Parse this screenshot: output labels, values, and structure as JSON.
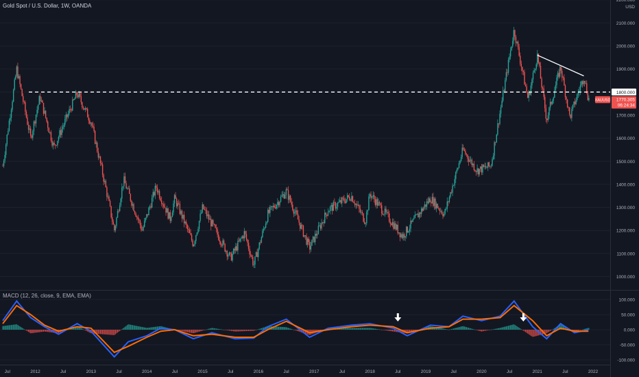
{
  "header": {
    "symbol": "Gold Spot / U.S. Dollar, 1W, OANDA"
  },
  "price_axis": {
    "unit": "USD",
    "ticks": [
      "2200.000",
      "2100.000",
      "2000.000",
      "1900.000",
      "1800.000",
      "1700.000",
      "1600.000",
      "1500.000",
      "1400.000",
      "1300.000",
      "1200.000",
      "1100.000",
      "1000.000"
    ],
    "level_label": "1800.000",
    "symbol_badge": "XAUUSD",
    "last_price": "1770.305",
    "countdown": "06:24:34"
  },
  "macd": {
    "label": "MACD (12, 26, close, 9, EMA, EMA)",
    "ticks": [
      "100.000",
      "50.000",
      "0.000",
      "-50.000",
      "-100.000"
    ]
  },
  "time_axis": {
    "labels": [
      "Jul",
      "2012",
      "Jul",
      "2013",
      "Jul",
      "2014",
      "Jul",
      "2015",
      "Jul",
      "2016",
      "Jul",
      "2017",
      "Jul",
      "2018",
      "Jul",
      "2019",
      "Jul",
      "2020",
      "Jul",
      "2021",
      "Jul",
      "2022"
    ]
  },
  "colors": {
    "up": "#26a69a",
    "down": "#ef5350",
    "macd_line": "#2962ff",
    "signal_line": "#ff6d00",
    "background": "#131722",
    "annotation": "#ffffff"
  },
  "icons": [
    "down-arrow-icon",
    "down-arrow-icon"
  ],
  "chart_data": [
    {
      "type": "candlestick",
      "title": "Gold Spot / U.S. Dollar, 1W, OANDA",
      "ylabel": "USD",
      "ylim": [
        1000,
        2200
      ],
      "x_range": [
        "2011-06",
        "2021-12"
      ],
      "key_points": [
        {
          "x": "2011-06",
          "y": 1480
        },
        {
          "x": "2011-09",
          "y": 1900
        },
        {
          "x": "2011-12",
          "y": 1600
        },
        {
          "x": "2012-02",
          "y": 1780
        },
        {
          "x": "2012-05",
          "y": 1560
        },
        {
          "x": "2012-10",
          "y": 1795
        },
        {
          "x": "2013-01",
          "y": 1670
        },
        {
          "x": "2013-04",
          "y": 1400
        },
        {
          "x": "2013-06",
          "y": 1200
        },
        {
          "x": "2013-08",
          "y": 1420
        },
        {
          "x": "2013-12",
          "y": 1200
        },
        {
          "x": "2014-03",
          "y": 1390
        },
        {
          "x": "2014-06",
          "y": 1250
        },
        {
          "x": "2014-07",
          "y": 1340
        },
        {
          "x": "2014-11",
          "y": 1140
        },
        {
          "x": "2015-01",
          "y": 1300
        },
        {
          "x": "2015-07",
          "y": 1080
        },
        {
          "x": "2015-10",
          "y": 1190
        },
        {
          "x": "2015-12",
          "y": 1050
        },
        {
          "x": "2016-03",
          "y": 1270
        },
        {
          "x": "2016-07",
          "y": 1370
        },
        {
          "x": "2016-12",
          "y": 1125
        },
        {
          "x": "2017-04",
          "y": 1290
        },
        {
          "x": "2017-09",
          "y": 1350
        },
        {
          "x": "2017-12",
          "y": 1240
        },
        {
          "x": "2018-01",
          "y": 1360
        },
        {
          "x": "2018-08",
          "y": 1175
        },
        {
          "x": "2019-02",
          "y": 1340
        },
        {
          "x": "2019-05",
          "y": 1270
        },
        {
          "x": "2019-09",
          "y": 1550
        },
        {
          "x": "2019-12",
          "y": 1460
        },
        {
          "x": "2020-03",
          "y": 1480
        },
        {
          "x": "2020-08",
          "y": 2070
        },
        {
          "x": "2020-11",
          "y": 1770
        },
        {
          "x": "2021-01",
          "y": 1960
        },
        {
          "x": "2021-03",
          "y": 1680
        },
        {
          "x": "2021-06",
          "y": 1910
        },
        {
          "x": "2021-08",
          "y": 1690
        },
        {
          "x": "2021-11",
          "y": 1870
        },
        {
          "x": "2021-12",
          "y": 1770
        }
      ],
      "horizontal_line": {
        "y": 1800,
        "style": "dashed"
      },
      "trendline": [
        {
          "x": "2021-01",
          "y": 1960
        },
        {
          "x": "2021-11",
          "y": 1870
        }
      ]
    },
    {
      "type": "line",
      "title": "MACD (12, 26, close, 9, EMA, EMA)",
      "ylim": [
        -110,
        115
      ],
      "series": [
        {
          "values": [
            {
              "x": "2011-06",
              "y": 30
            },
            {
              "x": "2011-09",
              "y": 95
            },
            {
              "x": "2011-12",
              "y": 40
            },
            {
              "x": "2012-03",
              "y": 10
            },
            {
              "x": "2012-06",
              "y": -15
            },
            {
              "x": "2012-10",
              "y": 20
            },
            {
              "x": "2013-01",
              "y": -5
            },
            {
              "x": "2013-06",
              "y": -90
            },
            {
              "x": "2013-09",
              "y": -40
            },
            {
              "x": "2014-01",
              "y": -20
            },
            {
              "x": "2014-04",
              "y": 5
            },
            {
              "x": "2014-07",
              "y": 0
            },
            {
              "x": "2014-11",
              "y": -30
            },
            {
              "x": "2015-03",
              "y": -10
            },
            {
              "x": "2015-08",
              "y": -30
            },
            {
              "x": "2015-12",
              "y": -28
            },
            {
              "x": "2016-03",
              "y": 10
            },
            {
              "x": "2016-07",
              "y": 35
            },
            {
              "x": "2016-12",
              "y": -25
            },
            {
              "x": "2017-04",
              "y": 5
            },
            {
              "x": "2017-09",
              "y": 15
            },
            {
              "x": "2018-01",
              "y": 20
            },
            {
              "x": "2018-06",
              "y": 5
            },
            {
              "x": "2018-09",
              "y": -20
            },
            {
              "x": "2019-02",
              "y": 15
            },
            {
              "x": "2019-06",
              "y": 10
            },
            {
              "x": "2019-09",
              "y": 45
            },
            {
              "x": "2020-01",
              "y": 30
            },
            {
              "x": "2020-05",
              "y": 45
            },
            {
              "x": "2020-08",
              "y": 95
            },
            {
              "x": "2020-12",
              "y": 10
            },
            {
              "x": "2021-03",
              "y": -30
            },
            {
              "x": "2021-06",
              "y": 20
            },
            {
              "x": "2021-09",
              "y": -10
            },
            {
              "x": "2021-12",
              "y": 0
            }
          ]
        },
        {
          "values": [
            {
              "x": "2011-06",
              "y": 20
            },
            {
              "x": "2011-09",
              "y": 80
            },
            {
              "x": "2011-12",
              "y": 50
            },
            {
              "x": "2012-03",
              "y": 15
            },
            {
              "x": "2012-06",
              "y": -5
            },
            {
              "x": "2012-10",
              "y": 10
            },
            {
              "x": "2013-01",
              "y": 5
            },
            {
              "x": "2013-06",
              "y": -75
            },
            {
              "x": "2013-09",
              "y": -55
            },
            {
              "x": "2014-01",
              "y": -25
            },
            {
              "x": "2014-04",
              "y": -5
            },
            {
              "x": "2014-07",
              "y": 0
            },
            {
              "x": "2014-11",
              "y": -20
            },
            {
              "x": "2015-03",
              "y": -15
            },
            {
              "x": "2015-08",
              "y": -25
            },
            {
              "x": "2015-12",
              "y": -25
            },
            {
              "x": "2016-03",
              "y": 0
            },
            {
              "x": "2016-07",
              "y": 28
            },
            {
              "x": "2016-12",
              "y": -10
            },
            {
              "x": "2017-04",
              "y": 0
            },
            {
              "x": "2017-09",
              "y": 10
            },
            {
              "x": "2018-01",
              "y": 15
            },
            {
              "x": "2018-06",
              "y": 10
            },
            {
              "x": "2018-09",
              "y": -10
            },
            {
              "x": "2019-02",
              "y": 5
            },
            {
              "x": "2019-06",
              "y": 10
            },
            {
              "x": "2019-09",
              "y": 35
            },
            {
              "x": "2020-01",
              "y": 35
            },
            {
              "x": "2020-05",
              "y": 40
            },
            {
              "x": "2020-08",
              "y": 80
            },
            {
              "x": "2020-12",
              "y": 30
            },
            {
              "x": "2021-03",
              "y": -20
            },
            {
              "x": "2021-06",
              "y": 5
            },
            {
              "x": "2021-09",
              "y": -5
            },
            {
              "x": "2021-12",
              "y": -5
            }
          ]
        }
      ],
      "annotations": [
        {
          "type": "arrow-down",
          "x": "2018-07"
        },
        {
          "type": "arrow-down",
          "x": "2020-10"
        }
      ]
    }
  ]
}
